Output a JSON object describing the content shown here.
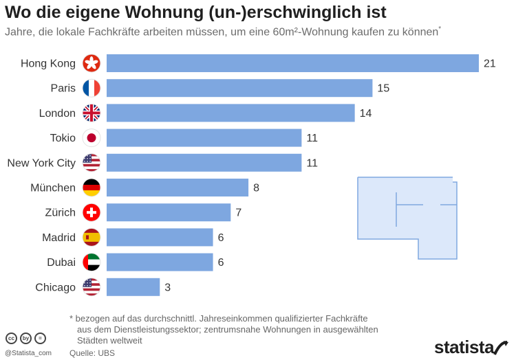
{
  "header": {
    "title": "Wo die eigene Wohnung (un-)erschwinglich ist",
    "subtitle": "Jahre, die lokale Fachkräfte arbeiten müssen, um eine 60m²-Wohnung kaufen zu können",
    "subtitle_mark": "*"
  },
  "chart_data": {
    "type": "bar",
    "orientation": "horizontal",
    "title": "Wo die eigene Wohnung (un-)erschwinglich ist",
    "subtitle": "Jahre, die lokale Fachkräfte arbeiten müssen, um eine 60m²-Wohnung kaufen zu können*",
    "categories": [
      "Hong Kong",
      "Paris",
      "London",
      "Tokio",
      "New York City",
      "München",
      "Zürich",
      "Madrid",
      "Dubai",
      "Chicago"
    ],
    "values": [
      21,
      15,
      14,
      11,
      11,
      8,
      7,
      6,
      6,
      3
    ],
    "flags": [
      "hong-kong-flag-icon",
      "france-flag-icon",
      "uk-flag-icon",
      "japan-flag-icon",
      "usa-flag-icon",
      "germany-flag-icon",
      "switzerland-flag-icon",
      "spain-flag-icon",
      "uae-flag-icon",
      "usa-flag-icon"
    ],
    "xlim": [
      0,
      21
    ],
    "grid": false,
    "bar_color": "#7ea7e0",
    "data_labels": true
  },
  "footnote": {
    "line1": "* bezogen auf das durchschnittl. Jahreseinkommen qualifizierter Fachkräfte",
    "line2": "aus dem Dienstleistungssektor; zentrumsnahe Wohnungen in ausgewählten",
    "line3": "Städten weltweit"
  },
  "source": "Quelle: UBS",
  "credit": "@Statista_com",
  "license_icons": [
    "cc",
    "by",
    "="
  ],
  "brand": "statista",
  "colors": {
    "bar": "#7ea7e0",
    "floorplan": "#dce8fa",
    "floorplan_line": "#7ea7e0"
  }
}
